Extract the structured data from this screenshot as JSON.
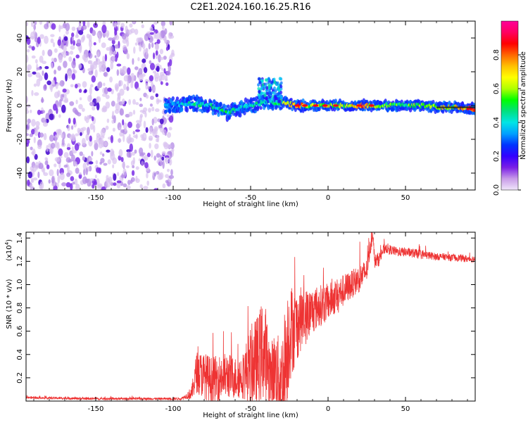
{
  "title": "C2E1.2024.160.16.25.R16",
  "colorbar": {
    "label": "Normalized spectral amplitude",
    "ticks": [
      "0.0",
      "0.2",
      "0.4",
      "0.6",
      "0.8"
    ],
    "tick_values": [
      0,
      0.2,
      0.4,
      0.6,
      0.8
    ],
    "range": [
      0,
      1
    ],
    "colors": [
      "#f0e6fa",
      "#c89be8",
      "#7a1fe6",
      "#3300ff",
      "#0033ff",
      "#00a0ff",
      "#00e5e5",
      "#00e080",
      "#00ff00",
      "#b0ff00",
      "#ffff00",
      "#ffc000",
      "#ff6600",
      "#ff0000",
      "#ff0060",
      "#ff0099"
    ]
  },
  "chart_data": [
    {
      "type": "heatmap",
      "xlabel": "Height of straight line (km)",
      "ylabel": "Frequency (Hz)",
      "xlim": [
        -195,
        95
      ],
      "ylim": [
        -50,
        50
      ],
      "xticks": [
        -150,
        -100,
        -50,
        0,
        50
      ],
      "xtick_labels": [
        "-150",
        "-100",
        "-50",
        "0",
        "50"
      ],
      "yticks": [
        -40,
        -20,
        0,
        20,
        40
      ],
      "ytick_labels": [
        "-40",
        "-20",
        "0",
        "20",
        "40"
      ],
      "noise_region_x": [
        -195,
        -100
      ],
      "ridge": {
        "x": [
          -105,
          -95,
          -85,
          -75,
          -65,
          -55,
          -45,
          -38,
          -34,
          -30,
          -20,
          -10,
          0,
          10,
          20,
          30,
          40,
          50,
          60,
          70,
          80,
          95
        ],
        "y": [
          0,
          1,
          1,
          0,
          -4,
          -1,
          1,
          3,
          1,
          2,
          0,
          0,
          0,
          0,
          0,
          0,
          0,
          0,
          0,
          -1,
          -1,
          -2
        ],
        "amplitude": [
          0.35,
          0.4,
          0.45,
          0.45,
          0.5,
          0.4,
          0.45,
          0.45,
          0.5,
          0.6,
          0.9,
          0.6,
          0.7,
          0.6,
          0.85,
          0.7,
          0.55,
          0.55,
          0.6,
          0.65,
          0.7,
          0.9
        ]
      }
    },
    {
      "type": "line",
      "xlabel": "Height of straight line (km)",
      "ylabel": "SNR (10 * v/v)",
      "ylabel_exponent": "(x10",
      "ylabel_exponent_power": "4",
      "ylabel_exponent_close": ")",
      "xlim": [
        -195,
        95
      ],
      "ylim": [
        0,
        1.45
      ],
      "xticks": [
        -150,
        -100,
        -50,
        0,
        50
      ],
      "xtick_labels": [
        "-150",
        "-100",
        "-50",
        "0",
        "50"
      ],
      "yticks": [
        0.2,
        0.4,
        0.6,
        0.8,
        1.0,
        1.2,
        1.4
      ],
      "ytick_labels": [
        "0.2",
        "0.4",
        "0.6",
        "0.8",
        "1.0",
        "1.2",
        "1.4"
      ],
      "series": [
        {
          "color": "#ee3333",
          "x": [
            -195,
            -150,
            -120,
            -100,
            -95,
            -92,
            -88,
            -85,
            -80,
            -75,
            -70,
            -65,
            -60,
            -55,
            -50,
            -45,
            -42,
            -40,
            -37,
            -35,
            -32,
            -30,
            -28,
            -26,
            -25,
            -22,
            -20,
            -18,
            -15,
            -12,
            -10,
            -5,
            0,
            5,
            10,
            15,
            20,
            25,
            27,
            29,
            30,
            33,
            35,
            37,
            40,
            45,
            50,
            55,
            60,
            65,
            70,
            75,
            80,
            85,
            90,
            95
          ],
          "y": [
            0.03,
            0.02,
            0.02,
            0.02,
            0.02,
            0.04,
            0.07,
            0.25,
            0.22,
            0.18,
            0.2,
            0.22,
            0.2,
            0.22,
            0.3,
            0.35,
            0.45,
            0.35,
            0.2,
            0.28,
            0.22,
            0.18,
            0.3,
            0.5,
            0.6,
            0.62,
            0.65,
            0.7,
            0.72,
            0.75,
            0.78,
            0.82,
            0.85,
            0.9,
            0.95,
            1.0,
            1.05,
            1.12,
            1.3,
            1.45,
            1.2,
            1.22,
            1.28,
            1.32,
            1.3,
            1.28,
            1.28,
            1.27,
            1.26,
            1.25,
            1.24,
            1.24,
            1.23,
            1.23,
            1.22,
            1.22
          ],
          "noise": [
            0.01,
            0.01,
            0.01,
            0.01,
            0.01,
            0.02,
            0.06,
            0.18,
            0.2,
            0.2,
            0.2,
            0.2,
            0.18,
            0.2,
            0.35,
            0.4,
            0.45,
            0.45,
            0.3,
            0.3,
            0.35,
            0.4,
            0.5,
            0.5,
            0.45,
            0.35,
            0.3,
            0.28,
            0.25,
            0.22,
            0.2,
            0.18,
            0.16,
            0.15,
            0.14,
            0.12,
            0.12,
            0.1,
            0.08,
            0.05,
            0.06,
            0.06,
            0.05,
            0.05,
            0.04,
            0.04,
            0.04,
            0.04,
            0.04,
            0.035,
            0.03,
            0.03,
            0.03,
            0.03,
            0.03,
            0.03
          ]
        }
      ]
    }
  ]
}
